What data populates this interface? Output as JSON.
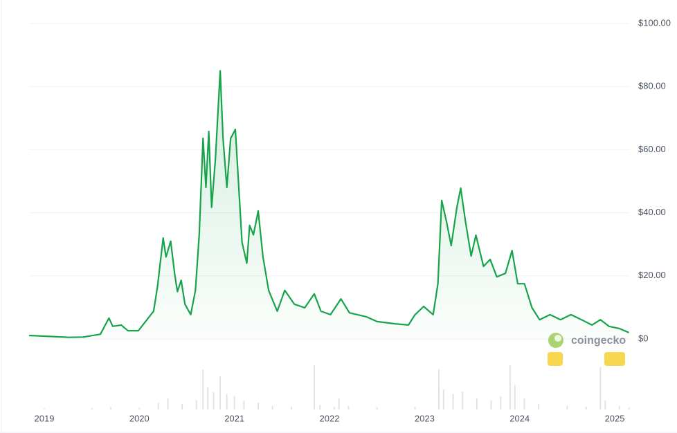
{
  "chart_data": [
    {
      "type": "line",
      "x": [
        2018.84,
        2019.26,
        2019.41,
        2019.59,
        2019.68,
        2019.72,
        2019.81,
        2019.88,
        2019.99,
        2020.08,
        2020.15,
        2020.19,
        2020.25,
        2020.28,
        2020.33,
        2020.37,
        2020.4,
        2020.44,
        2020.48,
        2020.54,
        2020.59,
        2020.63,
        2020.67,
        2020.7,
        2020.73,
        2020.76,
        2020.8,
        2020.85,
        2020.88,
        2020.92,
        2020.96,
        2021.01,
        2021.05,
        2021.08,
        2021.13,
        2021.16,
        2021.2,
        2021.25,
        2021.3,
        2021.36,
        2021.45,
        2021.53,
        2021.63,
        2021.74,
        2021.84,
        2021.91,
        2022.01,
        2022.12,
        2022.21,
        2022.39,
        2022.5,
        2022.69,
        2022.83,
        2022.9,
        2022.99,
        2023.09,
        2023.14,
        2023.18,
        2023.23,
        2023.28,
        2023.34,
        2023.38,
        2023.43,
        2023.49,
        2023.54,
        2023.62,
        2023.69,
        2023.76,
        2023.85,
        2023.92,
        2023.98,
        2024.05,
        2024.13,
        2024.21,
        2024.32,
        2024.43,
        2024.54,
        2024.65,
        2024.76,
        2024.85,
        2024.94,
        2025.05,
        2025.15
      ],
      "values": [
        1.1,
        0.5,
        0.6,
        1.5,
        6.6,
        4,
        4.4,
        2.6,
        2.6,
        6.1,
        8.8,
        16.4,
        32,
        26,
        31,
        21,
        15,
        18.6,
        11,
        7.7,
        15.4,
        33,
        63.6,
        48,
        65.8,
        41.7,
        57,
        85,
        63.6,
        48,
        63.6,
        66.4,
        46,
        30.7,
        24,
        36,
        33,
        40.6,
        26,
        15.4,
        8.8,
        15.4,
        11,
        9.9,
        14.3,
        8.8,
        7.7,
        12.7,
        8.3,
        7,
        5.5,
        4.8,
        4.4,
        7.7,
        10.3,
        7.7,
        17.5,
        43.9,
        37.3,
        29.6,
        41.7,
        47.8,
        37.3,
        26.3,
        32.9,
        23,
        25.2,
        19.7,
        20.8,
        28,
        17.5,
        17.5,
        9.9,
        6.1,
        7.7,
        6.1,
        7.7,
        6.1,
        4.4,
        6.1,
        4,
        3.3,
        2
      ],
      "color": "#16a34a",
      "xlim": [
        2018.84,
        2025.16
      ],
      "xticks": [
        2019,
        2020,
        2021,
        2022,
        2023,
        2024,
        2025
      ],
      "ylim": [
        0,
        100
      ],
      "yticks": [
        {
          "value": 0,
          "label": "$0"
        },
        {
          "value": 20,
          "label": "$20.00"
        },
        {
          "value": 40,
          "label": "$40.00"
        },
        {
          "value": 60,
          "label": "$60.00"
        },
        {
          "value": 80,
          "label": "$80.00"
        },
        {
          "value": 100,
          "label": "$100.00"
        }
      ],
      "grid": true,
      "watermark": "coingecko"
    },
    {
      "type": "bar",
      "x": [
        2019.0,
        2019.5,
        2019.7,
        2020.0,
        2020.2,
        2020.3,
        2020.45,
        2020.6,
        2020.67,
        2020.72,
        2020.78,
        2020.85,
        2020.92,
        2021.0,
        2021.1,
        2021.25,
        2021.4,
        2021.6,
        2021.84,
        2021.9,
        2022.05,
        2022.1,
        2022.2,
        2022.5,
        2022.9,
        2023.15,
        2023.2,
        2023.3,
        2023.4,
        2023.55,
        2023.7,
        2023.8,
        2023.9,
        2023.95,
        2024.05,
        2024.2,
        2024.5,
        2024.7,
        2024.85,
        2024.9,
        2025.05,
        2025.15
      ],
      "values": [
        2,
        3,
        5,
        4,
        15,
        25,
        12,
        20,
        90,
        50,
        40,
        75,
        35,
        30,
        20,
        15,
        8,
        6,
        100,
        10,
        6,
        25,
        8,
        5,
        6,
        90,
        45,
        35,
        40,
        25,
        20,
        30,
        100,
        55,
        25,
        12,
        8,
        6,
        95,
        20,
        8,
        5
      ],
      "color": "#dfe3e8",
      "xlim": [
        2018.84,
        2025.16
      ],
      "ylim": [
        0,
        100
      ]
    }
  ]
}
